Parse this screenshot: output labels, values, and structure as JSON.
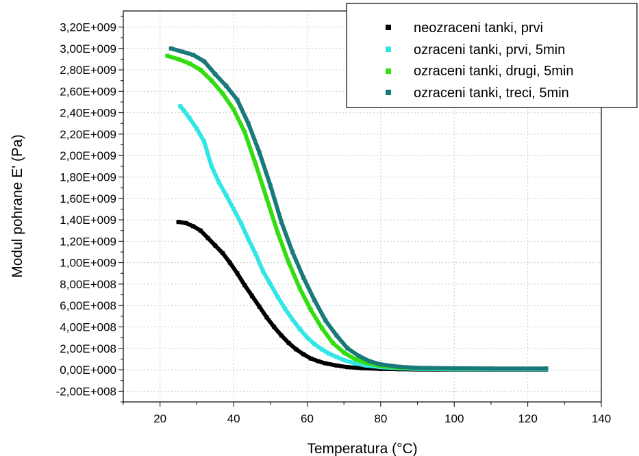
{
  "chart_data": {
    "type": "line",
    "xlabel": "Temperatura (°C)",
    "ylabel": "Modul pohrane E' (Pa)",
    "xlim": [
      10,
      140
    ],
    "ylim": [
      -300000000,
      3350000000
    ],
    "x_ticks": [
      20,
      40,
      60,
      80,
      100,
      120,
      140
    ],
    "x_tick_labels": [
      "20",
      "40",
      "60",
      "80",
      "100",
      "120",
      "140"
    ],
    "y_ticks": [
      -200000000,
      0,
      200000000,
      400000000,
      600000000,
      800000000,
      1000000000,
      1200000000,
      1400000000,
      1600000000,
      1800000000,
      2000000000,
      2200000000,
      2400000000,
      2600000000,
      2800000000,
      3000000000,
      3200000000
    ],
    "y_tick_labels": [
      "-2,00E+008",
      "0,00E+000",
      "2,00E+008",
      "4,00E+008",
      "6,00E+008",
      "8,00E+008",
      "1,00E+009",
      "1,20E+009",
      "1,40E+009",
      "1,60E+009",
      "1,80E+009",
      "2,00E+009",
      "2,20E+009",
      "2,40E+009",
      "2,60E+009",
      "2,80E+009",
      "3,00E+009",
      "3,20E+009"
    ],
    "grid": true,
    "legend_position": "top-right",
    "series": [
      {
        "name": "neozraceni tanki, prvi",
        "color": "#000000",
        "x": [
          25,
          27,
          29,
          31,
          33,
          35,
          37,
          39,
          41,
          43,
          45,
          47,
          49,
          51,
          53,
          55,
          57,
          59,
          61,
          63,
          65,
          68,
          71,
          75,
          80,
          85,
          90,
          100,
          110,
          125
        ],
        "y": [
          1380000000,
          1370000000,
          1340000000,
          1300000000,
          1230000000,
          1160000000,
          1090000000,
          1000000000,
          900000000,
          790000000,
          690000000,
          590000000,
          490000000,
          400000000,
          320000000,
          250000000,
          190000000,
          145000000,
          105000000,
          80000000,
          60000000,
          40000000,
          25000000,
          15000000,
          8000000,
          5000000,
          3000000,
          2000000,
          2000000,
          2000000
        ]
      },
      {
        "name": "ozraceni tanki, prvi, 5min",
        "color": "#33e6e6",
        "x": [
          25.5,
          26.5,
          28,
          30,
          32,
          34,
          36,
          38,
          40,
          42,
          44,
          46,
          48,
          50,
          52,
          54,
          56,
          58,
          60,
          62,
          64,
          66,
          68,
          70,
          73,
          76,
          80,
          85,
          90,
          100,
          110,
          125
        ],
        "y": [
          2460000000,
          2420000000,
          2350000000,
          2250000000,
          2130000000,
          1900000000,
          1750000000,
          1630000000,
          1500000000,
          1370000000,
          1220000000,
          1080000000,
          920000000,
          800000000,
          680000000,
          570000000,
          470000000,
          380000000,
          300000000,
          240000000,
          190000000,
          150000000,
          120000000,
          90000000,
          60000000,
          40000000,
          25000000,
          15000000,
          8000000,
          5000000,
          5000000,
          5000000
        ]
      },
      {
        "name": "ozraceni tanki, drugi, 5min",
        "color": "#33dd11",
        "x": [
          22,
          25,
          28,
          31,
          34,
          37,
          40,
          43,
          46,
          49,
          52,
          55,
          58,
          61,
          64,
          67,
          70,
          73,
          76,
          80,
          85,
          90,
          100,
          110,
          125
        ],
        "y": [
          2930000000,
          2900000000,
          2860000000,
          2800000000,
          2700000000,
          2580000000,
          2430000000,
          2220000000,
          1920000000,
          1600000000,
          1280000000,
          1000000000,
          760000000,
          560000000,
          390000000,
          250000000,
          160000000,
          100000000,
          65000000,
          35000000,
          20000000,
          15000000,
          12000000,
          10000000,
          10000000
        ]
      },
      {
        "name": "ozraceni tanki, treci, 5min",
        "color": "#1a7a7a",
        "x": [
          23,
          26,
          29,
          32,
          35,
          38,
          41,
          44,
          47,
          50,
          53,
          56,
          59,
          62,
          65,
          68,
          71,
          74,
          77,
          80,
          85,
          90,
          100,
          110,
          125
        ],
        "y": [
          3000000000,
          2970000000,
          2940000000,
          2880000000,
          2760000000,
          2650000000,
          2520000000,
          2300000000,
          2030000000,
          1720000000,
          1380000000,
          1100000000,
          860000000,
          650000000,
          460000000,
          320000000,
          200000000,
          130000000,
          80000000,
          50000000,
          28000000,
          18000000,
          14000000,
          12000000,
          12000000
        ]
      }
    ]
  }
}
